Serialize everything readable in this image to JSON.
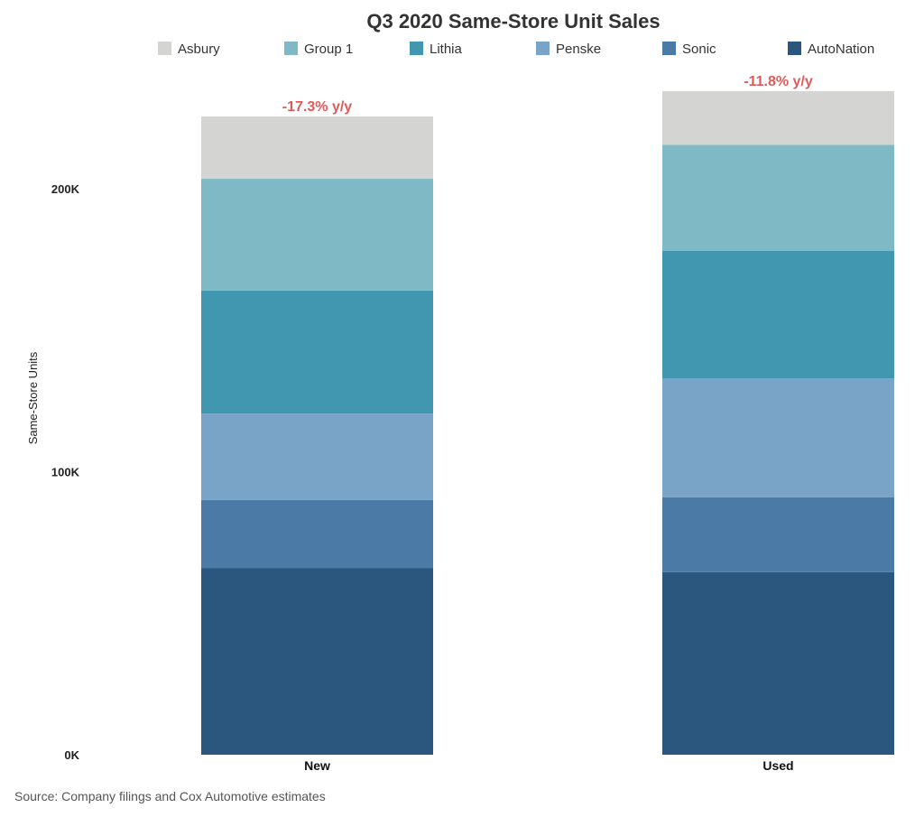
{
  "chart_data": {
    "type": "bar",
    "stacked": true,
    "title": "Q3 2020 Same-Store Unit Sales",
    "ylabel": "Same-Store Units",
    "xlabel": "",
    "ylim": [
      0,
      230000
    ],
    "yticks": [
      0,
      100000,
      200000
    ],
    "ytick_labels": [
      "0K",
      "100K",
      "200K"
    ],
    "categories": [
      "New",
      "Used"
    ],
    "series": [
      {
        "name": "AutoNation",
        "color": "#2b567e",
        "values": [
          66000,
          64500
        ]
      },
      {
        "name": "Sonic",
        "color": "#4b7aa6",
        "values": [
          24000,
          26500
        ]
      },
      {
        "name": "Penske",
        "color": "#79a4c8",
        "values": [
          30500,
          42000
        ]
      },
      {
        "name": "Lithia",
        "color": "#4297b0",
        "values": [
          43500,
          45000
        ]
      },
      {
        "name": "Group 1",
        "color": "#7fb9c5",
        "values": [
          39500,
          37500
        ]
      },
      {
        "name": "Asbury",
        "color": "#d4d5d3",
        "values": [
          22000,
          19000
        ]
      }
    ],
    "legend_order": [
      "Asbury",
      "Group 1",
      "Lithia",
      "Penske",
      "Sonic",
      "AutoNation"
    ],
    "legend_position": "top",
    "annotations": [
      {
        "category": "New",
        "text": "-17.3% y/y",
        "color": "#e05a5a"
      },
      {
        "category": "Used",
        "text": "-11.8% y/y",
        "color": "#e05a5a"
      }
    ],
    "grid": false
  },
  "source": "Source: Company filings and Cox Automotive estimates"
}
